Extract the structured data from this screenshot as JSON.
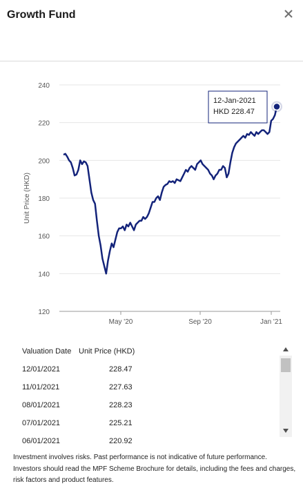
{
  "header": {
    "title": "Growth Fund",
    "close_icon": "close-icon"
  },
  "chart_data": {
    "type": "line",
    "ylabel": "Unit Price (HKD)",
    "ylim": [
      120,
      240
    ],
    "yticks": [
      120,
      140,
      160,
      180,
      200,
      220,
      240
    ],
    "xticks": [
      "May '20",
      "Sep '20",
      "Jan '21"
    ],
    "line_color": "#13237a",
    "tooltip": {
      "date": "12-Jan-2021",
      "value": "HKD 228.47"
    },
    "series": [
      {
        "values": [
          203,
          203.5,
          202,
          200,
          199,
          196,
          192,
          192.5,
          195,
          200,
          198,
          199.5,
          199,
          197,
          190,
          183,
          179,
          177,
          168,
          160,
          155,
          148,
          144,
          140,
          147,
          152,
          156,
          154,
          158,
          162,
          164,
          164,
          165,
          163,
          166,
          165,
          167,
          165,
          163,
          166,
          167,
          168,
          168,
          170,
          169,
          170,
          172,
          175,
          178,
          178,
          180,
          181,
          179,
          183,
          186,
          187,
          187.5,
          189,
          188.5,
          189,
          188,
          190,
          189.5,
          189,
          191,
          193,
          195,
          194,
          196,
          197,
          196,
          195,
          198,
          199,
          200,
          198,
          197,
          196,
          195,
          193,
          192,
          190,
          192,
          193,
          195,
          195,
          197,
          196,
          191,
          193,
          199,
          204,
          207,
          209,
          210,
          211,
          212,
          213,
          212,
          214,
          213.5,
          215,
          214,
          213,
          215,
          214,
          215,
          216,
          216,
          215,
          214,
          215,
          221,
          222,
          224,
          228.47
        ]
      }
    ]
  },
  "table": {
    "headers": {
      "date": "Valuation Date",
      "price": "Unit Price (HKD)"
    },
    "rows": [
      {
        "date": "12/01/2021",
        "price": "228.47"
      },
      {
        "date": "11/01/2021",
        "price": "227.63"
      },
      {
        "date": "08/01/2021",
        "price": "228.23"
      },
      {
        "date": "07/01/2021",
        "price": "225.21"
      },
      {
        "date": "06/01/2021",
        "price": "220.92"
      }
    ]
  },
  "disclaimer": "Investment involves risks. Past performance is not indicative of future performance. Investors should read the MPF Scheme Brochure for details, including the fees and charges, risk factors and product features."
}
